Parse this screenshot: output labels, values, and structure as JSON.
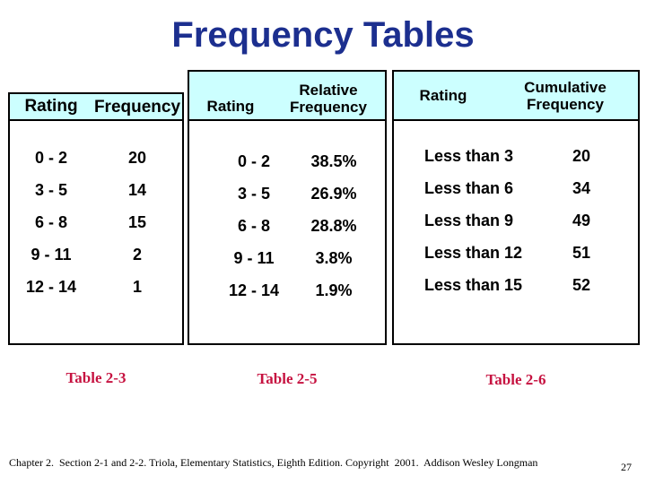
{
  "slide": {
    "title": "Frequency Tables"
  },
  "colors": {
    "title_text": "#1c2f8f",
    "caption_text": "#c61240",
    "table_header_bg": "#ccffff",
    "table_border": "#000000"
  },
  "tables": [
    {
      "caption": "Table 2-3",
      "columns": {
        "rating": "Rating",
        "value": "Frequency"
      },
      "rows": [
        {
          "rating": "0 - 2",
          "value": "20"
        },
        {
          "rating": "3 - 5",
          "value": "14"
        },
        {
          "rating": "6 - 8",
          "value": "15"
        },
        {
          "rating": "9 - 11",
          "value": "2"
        },
        {
          "rating": "12 - 14",
          "value": "1"
        }
      ]
    },
    {
      "caption": "Table 2-5",
      "columns": {
        "rating": "Rating",
        "value_line1": "Relative",
        "value_line2": "Frequency"
      },
      "rows": [
        {
          "rating": "0 - 2",
          "value": "38.5%"
        },
        {
          "rating": "3 - 5",
          "value": "26.9%"
        },
        {
          "rating": "6 - 8",
          "value": "28.8%"
        },
        {
          "rating": "9 - 11",
          "value": "3.8%"
        },
        {
          "rating": "12 - 14",
          "value": "1.9%"
        }
      ]
    },
    {
      "caption": "Table 2-6",
      "columns": {
        "rating": "Rating",
        "value_line1": "Cumulative",
        "value_line2": "Frequency"
      },
      "rows": [
        {
          "rating": "Less than 3",
          "value": "20"
        },
        {
          "rating": "Less than 6",
          "value": "34"
        },
        {
          "rating": "Less than 9",
          "value": "49"
        },
        {
          "rating": "Less than 12",
          "value": "51"
        },
        {
          "rating": "Less than 15",
          "value": "52"
        }
      ]
    }
  ],
  "footer": {
    "citation": "Chapter 2.  Section 2-1 and 2-2. Triola, Elementary Statistics, Eighth Edition. Copyright  2001.  Addison Wesley Longman",
    "page_number": "27"
  }
}
